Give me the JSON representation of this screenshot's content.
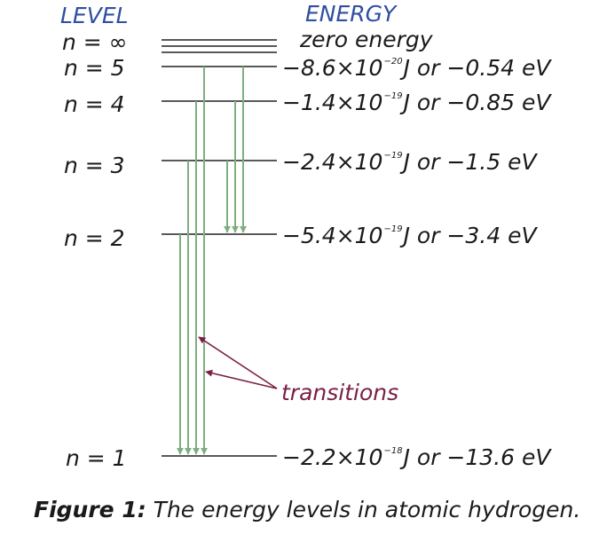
{
  "headers": {
    "level": "LEVEL",
    "energy": "ENERGY"
  },
  "levels": [
    {
      "id": "n_inf",
      "label": "n = ∞",
      "energy": "zero energy"
    },
    {
      "id": "n5",
      "label": "n = 5",
      "e_joule_base": "−8.6×10",
      "e_joule_exp": "−20",
      "e_ev": "J or −0.54 eV"
    },
    {
      "id": "n4",
      "label": "n = 4",
      "e_joule_base": "−1.4×10",
      "e_joule_exp": "−19",
      "e_ev": "J or −0.85 eV"
    },
    {
      "id": "n3",
      "label": "n = 3",
      "e_joule_base": "−2.4×10",
      "e_joule_exp": "−19",
      "e_ev": "J or −1.5 eV"
    },
    {
      "id": "n2",
      "label": "n = 2",
      "e_joule_base": "−5.4×10",
      "e_joule_exp": "−19",
      "e_ev": "J or −3.4 eV"
    },
    {
      "id": "n1",
      "label": "n = 1",
      "e_joule_base": "−2.2×10",
      "e_joule_exp": "−18",
      "e_ev": "J or −13.6 eV"
    }
  ],
  "transitions_label": "transitions",
  "caption": {
    "bold": "Figure 1:",
    "text": " The energy levels in atomic hydrogen."
  },
  "colors": {
    "header": "#2f4fa0",
    "arrow": "#7fae82",
    "annotation": "#7a1f45",
    "line": "#222222"
  }
}
